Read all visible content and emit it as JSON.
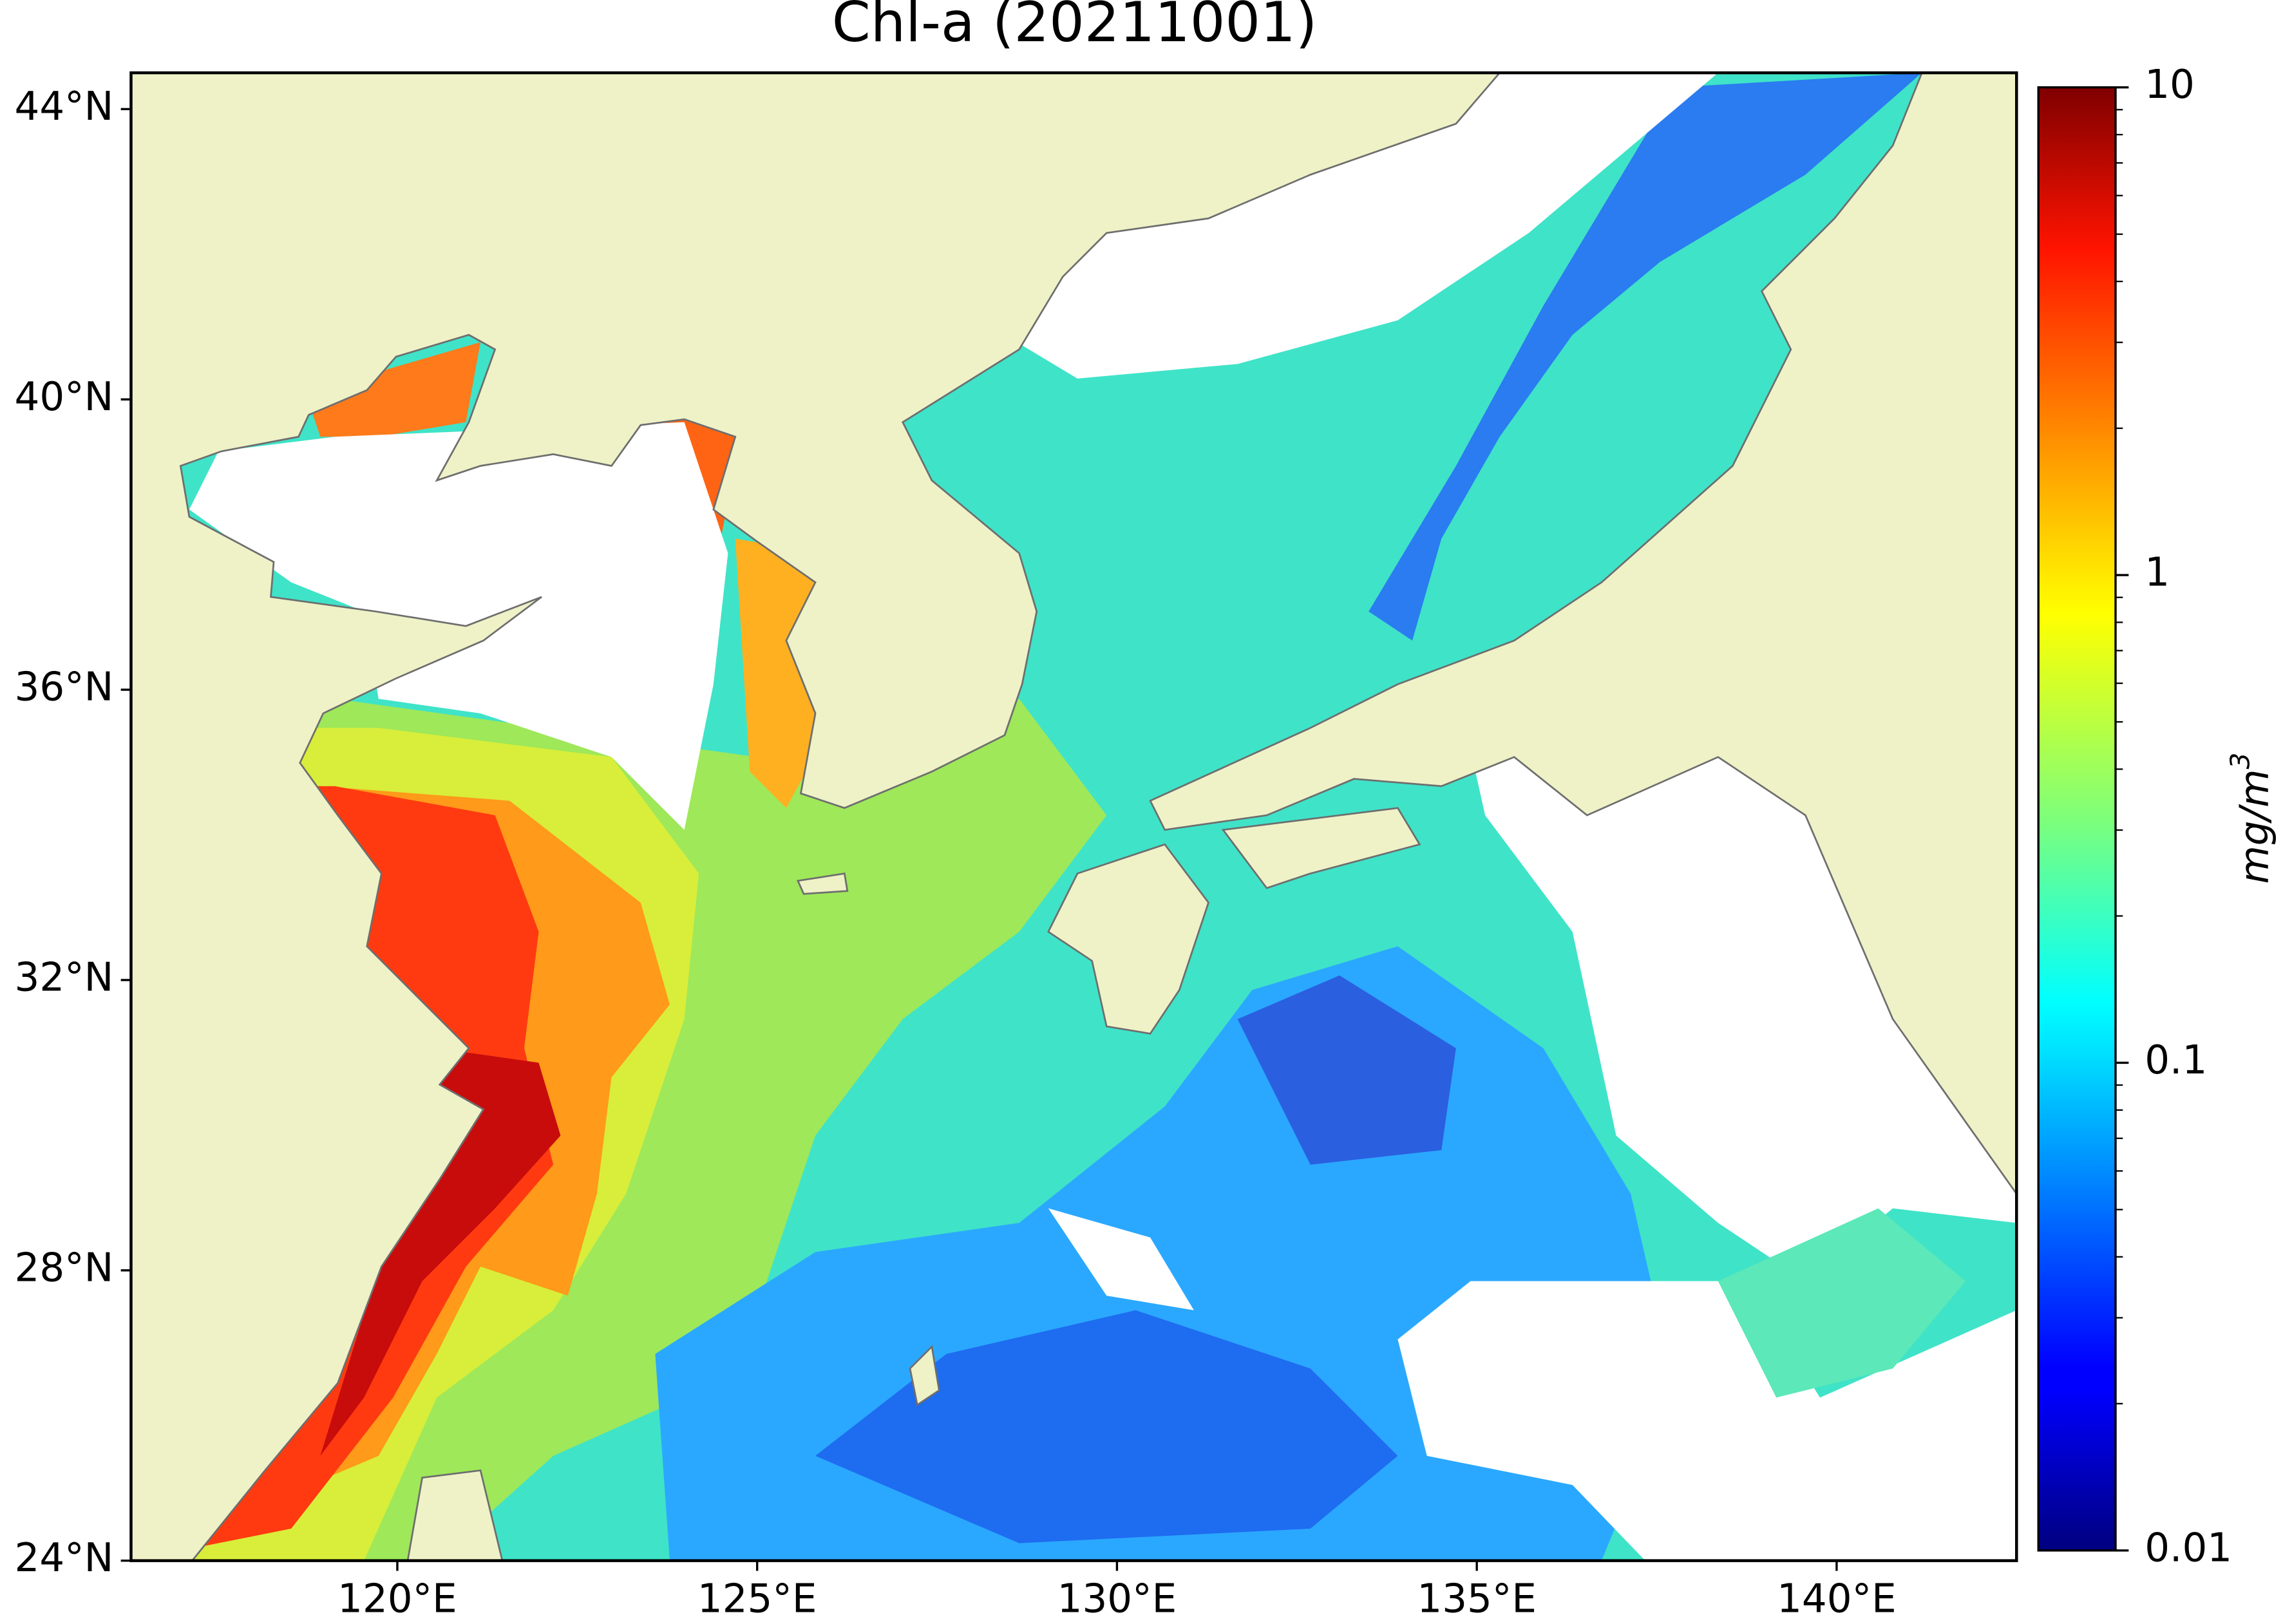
{
  "chart_data": {
    "type": "map",
    "title": "Chl-a (20211001)",
    "xlim": [
      116.3,
      142.5
    ],
    "ylim": [
      24,
      44.5
    ],
    "xticks": [
      {
        "value": 120,
        "label": "120°E"
      },
      {
        "value": 125,
        "label": "125°E"
      },
      {
        "value": 130,
        "label": "130°E"
      },
      {
        "value": 135,
        "label": "135°E"
      },
      {
        "value": 140,
        "label": "140°E"
      }
    ],
    "yticks": [
      {
        "value": 24,
        "label": "24°N"
      },
      {
        "value": 28,
        "label": "28°N"
      },
      {
        "value": 32,
        "label": "32°N"
      },
      {
        "value": 36,
        "label": "36°N"
      },
      {
        "value": 40,
        "label": "40°N"
      },
      {
        "value": 44,
        "label": "44°N"
      }
    ],
    "colorbar": {
      "scale": "log",
      "colormap": "jet",
      "lim": [
        0.01,
        10
      ],
      "ticks": [
        0.01,
        0.1,
        1,
        10
      ],
      "label": "mg/m",
      "label_superscript": "3"
    }
  }
}
